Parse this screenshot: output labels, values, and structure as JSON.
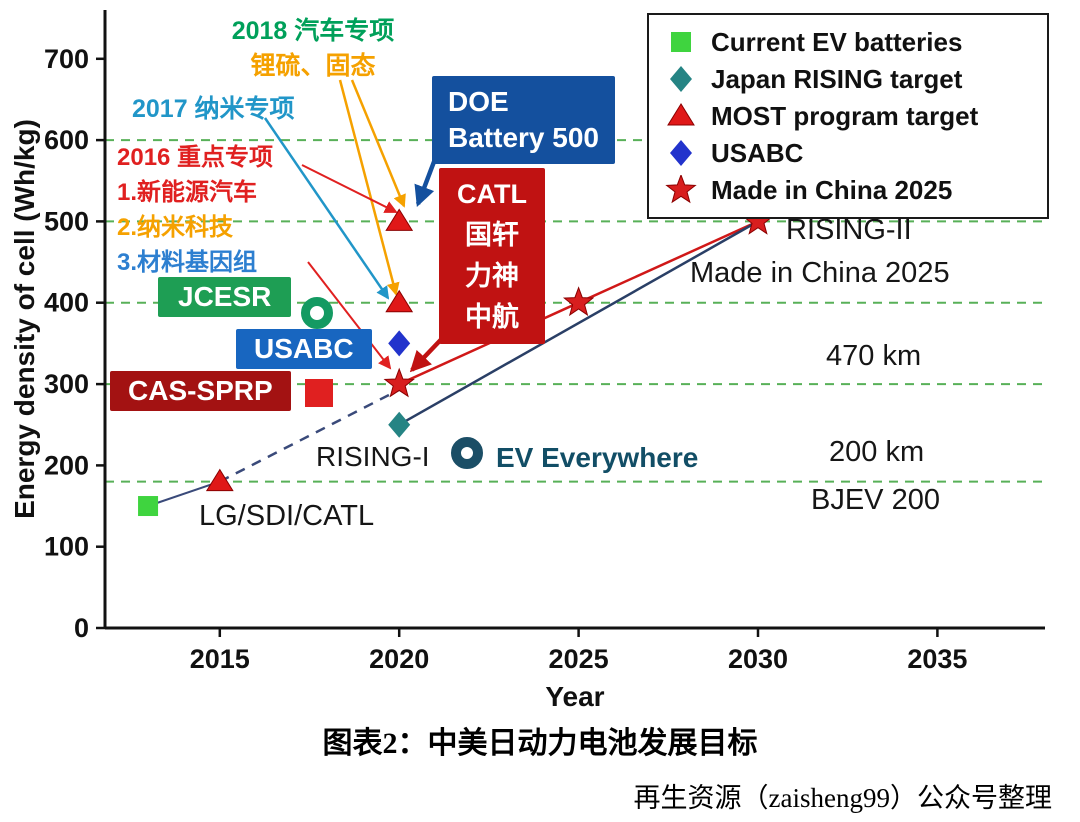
{
  "chart_data": {
    "type": "scatter",
    "title": "中美日动力电池发展目标",
    "xlabel": "Year",
    "ylabel": "Energy density of cell (Wh/kg)",
    "xlim": [
      2011.8,
      2038.0
    ],
    "ylim": [
      0,
      760
    ],
    "x_ticks": [
      2015,
      2020,
      2025,
      2030,
      2035
    ],
    "y_ticks": [
      0,
      100,
      200,
      300,
      400,
      500,
      600,
      700
    ],
    "gridlines_y": [
      180,
      300,
      400,
      500,
      600
    ],
    "gridline_color": "#58b058",
    "legend_position": "top-right",
    "series": [
      {
        "name": "Current EV batteries",
        "marker": "square",
        "color": "#3fd43f",
        "points": [
          [
            2013,
            150
          ]
        ]
      },
      {
        "name": "Japan RISING target",
        "marker": "diamond",
        "color": "#258484",
        "points": [
          [
            2020,
            250
          ]
        ]
      },
      {
        "name": "MOST program target",
        "marker": "triangle",
        "color": "#e01818",
        "points": [
          [
            2015,
            180
          ],
          [
            2020,
            400
          ],
          [
            2020,
            500
          ]
        ]
      },
      {
        "name": "USABC",
        "marker": "diamond",
        "color": "#2233cc",
        "points": [
          [
            2020,
            350
          ]
        ]
      },
      {
        "name": "Made in China 2025",
        "marker": "star",
        "color": "#d81e1e",
        "points": [
          [
            2020,
            300
          ],
          [
            2025,
            400
          ],
          [
            2030,
            500
          ]
        ]
      }
    ],
    "lines": [
      {
        "from": [
          2013,
          150
        ],
        "to": [
          2015,
          180
        ],
        "style": "solid",
        "color": "#3a4a7a",
        "width": 2
      },
      {
        "from": [
          2015,
          180
        ],
        "to": [
          2020,
          293
        ],
        "style": "dashed",
        "color": "#3a4a7a",
        "width": 2.5
      },
      {
        "from": [
          2020,
          300
        ],
        "to": [
          2025,
          400
        ],
        "style": "solid",
        "color": "#d01818",
        "width": 2.5
      },
      {
        "from": [
          2025,
          400
        ],
        "to": [
          2030,
          500
        ],
        "style": "solid",
        "color": "#d01818",
        "width": 2.5
      },
      {
        "from": [
          2020,
          250
        ],
        "to": [
          2030,
          500
        ],
        "style": "solid",
        "color": "#2a3f66",
        "width": 2.5
      }
    ]
  },
  "annotations": {
    "a2018_line1": "2018 汽车专项",
    "a2018_line2": "锂硫、固态",
    "a2017": "2017 纳米专项",
    "a2016_line1": "2016 重点专项",
    "a2016_line2": "1.新能源汽车",
    "a2016_line3": "2.纳米科技",
    "a2016_line4": "3.材料基因组",
    "jcesr": "JCESR",
    "usabc_box": "USABC",
    "cas_sprp": "CAS-SPRP",
    "doe_line1": "DOE",
    "doe_line2": "Battery 500",
    "catl_line1": "CATL",
    "catl_line2": "国轩",
    "catl_line3": "力神",
    "catl_line4": "中航",
    "rising1": "RISING-I",
    "ev_everywhere": "EV Everywhere",
    "rising2": "RISING-II",
    "made_in_china": "Made in China 2025",
    "km470": "470 km",
    "km200": "200 km",
    "bjev": "BJEV 200",
    "lg_sdi_catl": "LG/SDI/CATL"
  },
  "palette": {
    "green_box": "#1e9e54",
    "blue_box": "#1866c0",
    "darkred_box": "#a31212",
    "doe_blue": "#14509e",
    "catl_red": "#c01212",
    "ann_green": "#00a05a",
    "ann_orange": "#f5a100",
    "ann_teal": "#2196c8",
    "ann_red": "#e02020",
    "ann_blue": "#2d7fd0",
    "ev_navy": "#124e66",
    "jcesr_ring": "#149a62",
    "ev_ring": "#1b4e66"
  },
  "caption": {
    "title": "图表2：中美日动力电池发展目标",
    "credit": "再生资源（zaisheng99）公众号整理"
  }
}
